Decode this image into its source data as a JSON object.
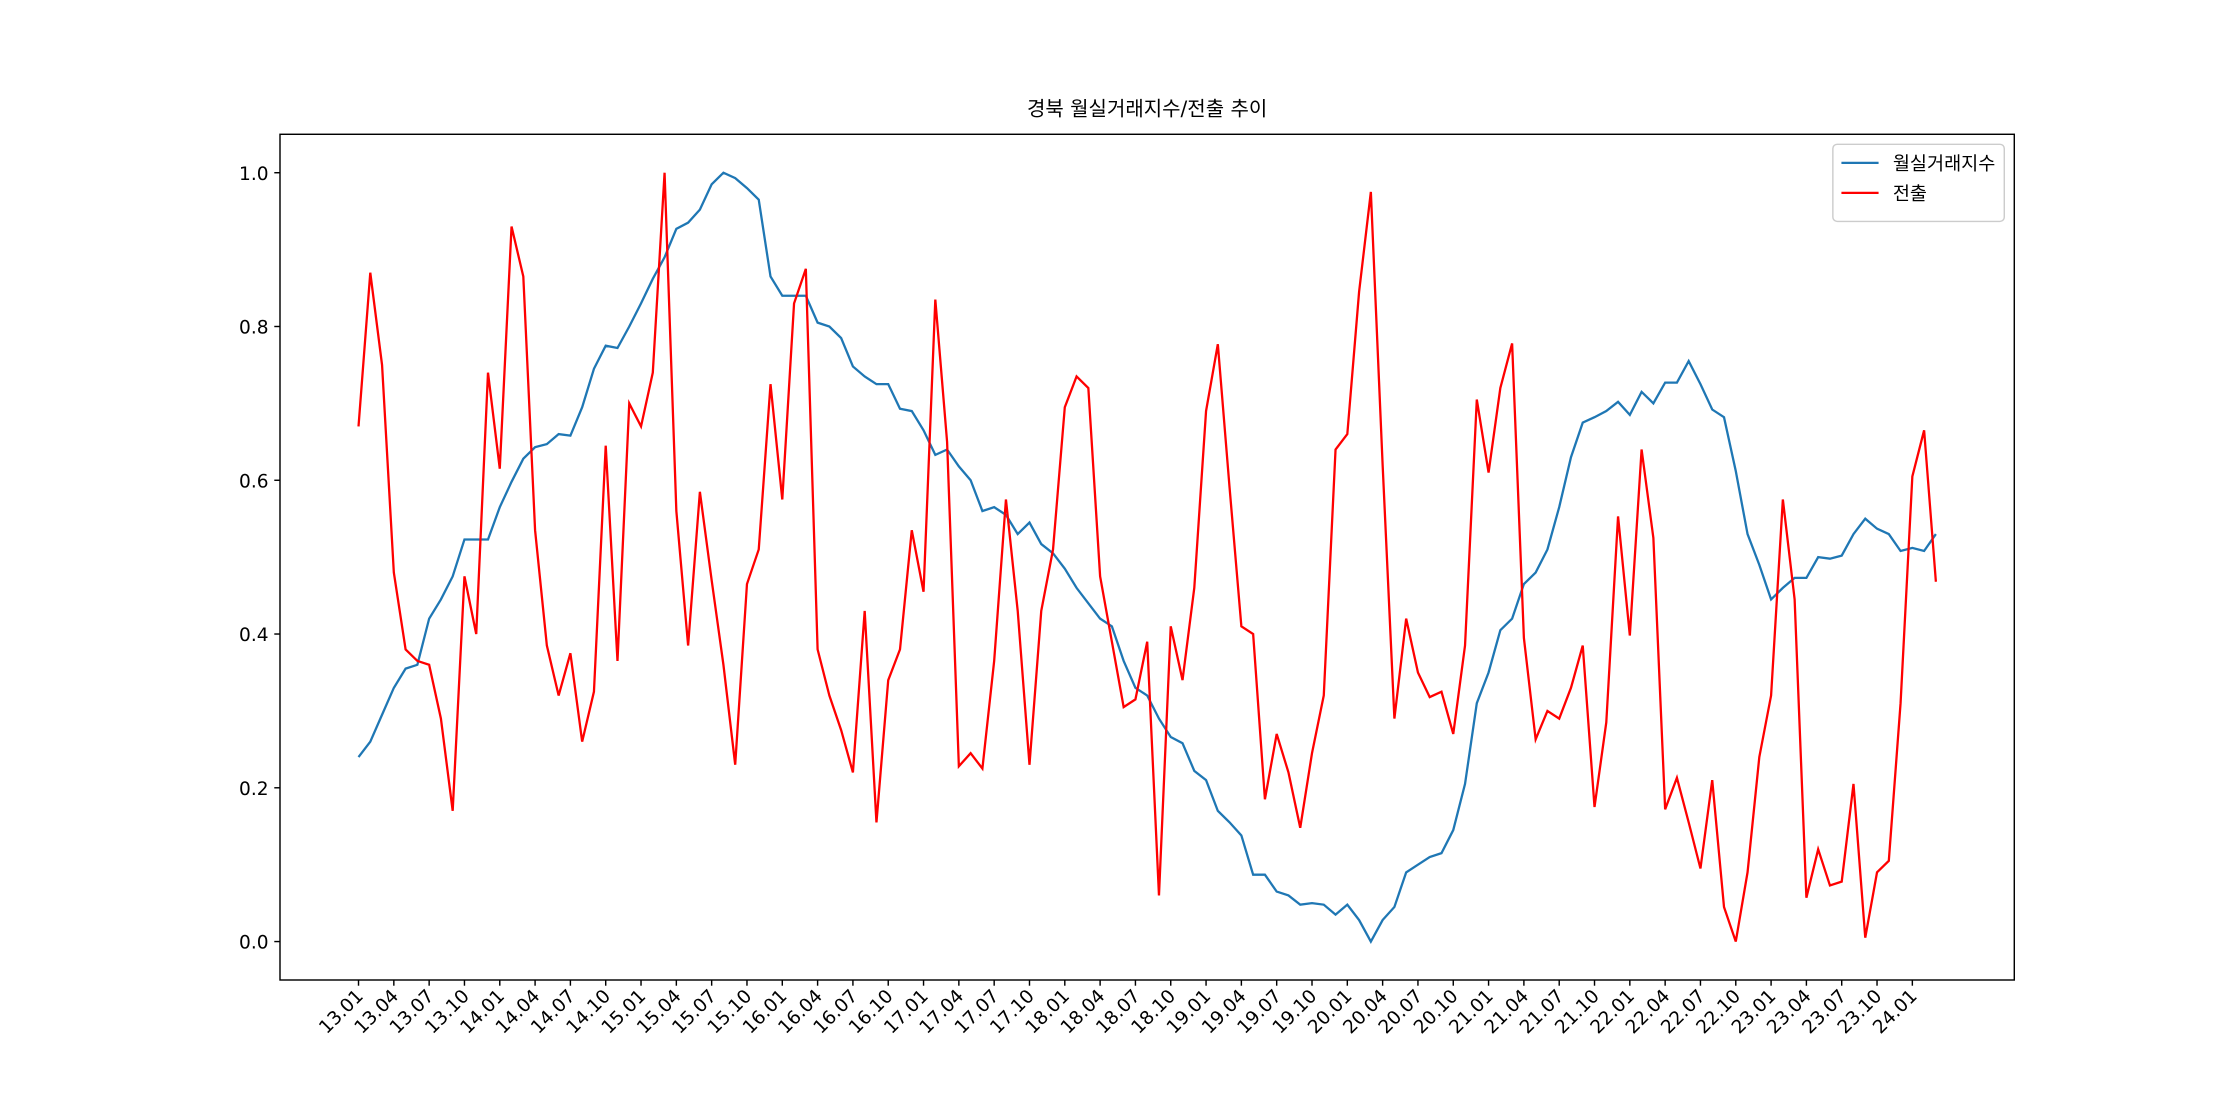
{
  "chart_data": {
    "type": "line",
    "title": "경북 월실거래지수/전출 추이",
    "categories": [
      "13.01",
      null,
      null,
      "13.04",
      null,
      null,
      "13.07",
      null,
      null,
      "13.10",
      null,
      null,
      "14.01",
      null,
      null,
      "14.04",
      null,
      null,
      "14.07",
      null,
      null,
      "14.10",
      null,
      null,
      "15.01",
      null,
      null,
      "15.04",
      null,
      null,
      "15.07",
      null,
      null,
      "15.10",
      null,
      null,
      "16.01",
      null,
      null,
      "16.04",
      null,
      null,
      "16.07",
      null,
      null,
      "16.10",
      null,
      null,
      "17.01",
      null,
      null,
      "17.04",
      null,
      null,
      "17.07",
      null,
      null,
      "17.10",
      null,
      null,
      "18.01",
      null,
      null,
      "18.04",
      null,
      null,
      "18.07",
      null,
      null,
      "18.10",
      null,
      null,
      "19.01",
      null,
      null,
      "19.04",
      null,
      null,
      "19.07",
      null,
      null,
      "19.10",
      null,
      null,
      "20.01",
      null,
      null,
      "20.04",
      null,
      null,
      "20.07",
      null,
      null,
      "20.10",
      null,
      null,
      "21.01",
      null,
      null,
      "21.04",
      null,
      null,
      "21.07",
      null,
      null,
      "21.10",
      null,
      null,
      "22.01",
      null,
      null,
      "22.04",
      null,
      null,
      "22.07",
      null,
      null,
      "22.10",
      null,
      null,
      "23.01",
      null,
      null,
      "23.04",
      null,
      null,
      "23.07",
      null,
      null,
      "23.10",
      null,
      null,
      "24.01",
      null,
      null
    ],
    "series": [
      {
        "name": "월실거래지수",
        "color": "#1f77b4",
        "values": [
          0.24,
          0.26,
          0.295,
          0.33,
          0.355,
          0.36,
          0.42,
          0.445,
          0.475,
          0.523,
          0.523,
          0.523,
          0.565,
          0.598,
          0.628,
          0.643,
          0.647,
          0.66,
          0.658,
          0.695,
          0.745,
          0.775,
          0.772,
          0.8,
          0.83,
          0.862,
          0.89,
          0.927,
          0.935,
          0.952,
          0.985,
          1.0,
          0.993,
          0.98,
          0.965,
          0.865,
          0.84,
          0.84,
          0.84,
          0.805,
          0.8,
          0.785,
          0.748,
          0.735,
          0.725,
          0.725,
          0.693,
          0.69,
          0.665,
          0.633,
          0.64,
          0.618,
          0.6,
          0.56,
          0.565,
          0.555,
          0.53,
          0.545,
          0.517,
          0.505,
          0.485,
          0.46,
          0.44,
          0.42,
          0.41,
          0.365,
          0.33,
          0.32,
          0.29,
          0.266,
          0.258,
          0.222,
          0.21,
          0.17,
          0.155,
          0.138,
          0.087,
          0.087,
          0.065,
          0.06,
          0.048,
          0.05,
          0.048,
          0.035,
          0.048,
          0.028,
          0.0,
          0.028,
          0.045,
          0.09,
          0.1,
          0.11,
          0.115,
          0.145,
          0.205,
          0.31,
          0.35,
          0.405,
          0.42,
          0.465,
          0.48,
          0.51,
          0.565,
          0.63,
          0.675,
          0.682,
          0.69,
          0.702,
          0.685,
          0.715,
          0.7,
          0.727,
          0.727,
          0.755,
          0.725,
          0.692,
          0.682,
          0.612,
          0.53,
          0.49,
          0.445,
          0.46,
          0.473,
          0.473,
          0.5,
          0.498,
          0.502,
          0.53,
          0.55,
          0.537,
          0.53,
          0.508,
          0.512,
          0.508,
          0.53
        ]
      },
      {
        "name": "전출",
        "color": "#ff0000",
        "values": [
          0.67,
          0.87,
          0.75,
          0.48,
          0.38,
          0.365,
          0.36,
          0.29,
          0.17,
          0.475,
          0.4,
          0.74,
          0.615,
          0.93,
          0.865,
          0.535,
          0.385,
          0.32,
          0.375,
          0.26,
          0.325,
          0.645,
          0.365,
          0.7,
          0.67,
          0.74,
          1.0,
          0.56,
          0.385,
          0.585,
          0.47,
          0.36,
          0.23,
          0.465,
          0.51,
          0.725,
          0.575,
          0.83,
          0.875,
          0.38,
          0.32,
          0.275,
          0.22,
          0.43,
          0.155,
          0.34,
          0.38,
          0.535,
          0.455,
          0.835,
          0.65,
          0.228,
          0.245,
          0.225,
          0.365,
          0.575,
          0.43,
          0.23,
          0.43,
          0.51,
          0.695,
          0.735,
          0.72,
          0.475,
          0.39,
          0.305,
          0.315,
          0.39,
          0.06,
          0.41,
          0.34,
          0.46,
          0.69,
          0.777,
          0.59,
          0.41,
          0.4,
          0.185,
          0.27,
          0.22,
          0.148,
          0.245,
          0.32,
          0.64,
          0.66,
          0.845,
          0.975,
          0.62,
          0.29,
          0.42,
          0.35,
          0.318,
          0.325,
          0.27,
          0.385,
          0.705,
          0.61,
          0.72,
          0.778,
          0.395,
          0.263,
          0.3,
          0.29,
          0.33,
          0.385,
          0.175,
          0.285,
          0.553,
          0.398,
          0.64,
          0.525,
          0.172,
          0.213,
          0.155,
          0.095,
          0.21,
          0.045,
          0.0,
          0.09,
          0.24,
          0.32,
          0.575,
          0.445,
          0.057,
          0.12,
          0.073,
          0.078,
          0.205,
          0.005,
          0.09,
          0.105,
          0.31,
          0.605,
          0.665,
          0.468
        ]
      }
    ],
    "ylim": [
      -0.05,
      1.05
    ],
    "yticks": [
      {
        "value": 0.0,
        "label": "0.0"
      },
      0.2,
      0.4,
      0.6,
      0.8,
      {
        "value": 1.0,
        "label": "1.0"
      }
    ],
    "legend": "upper right"
  }
}
